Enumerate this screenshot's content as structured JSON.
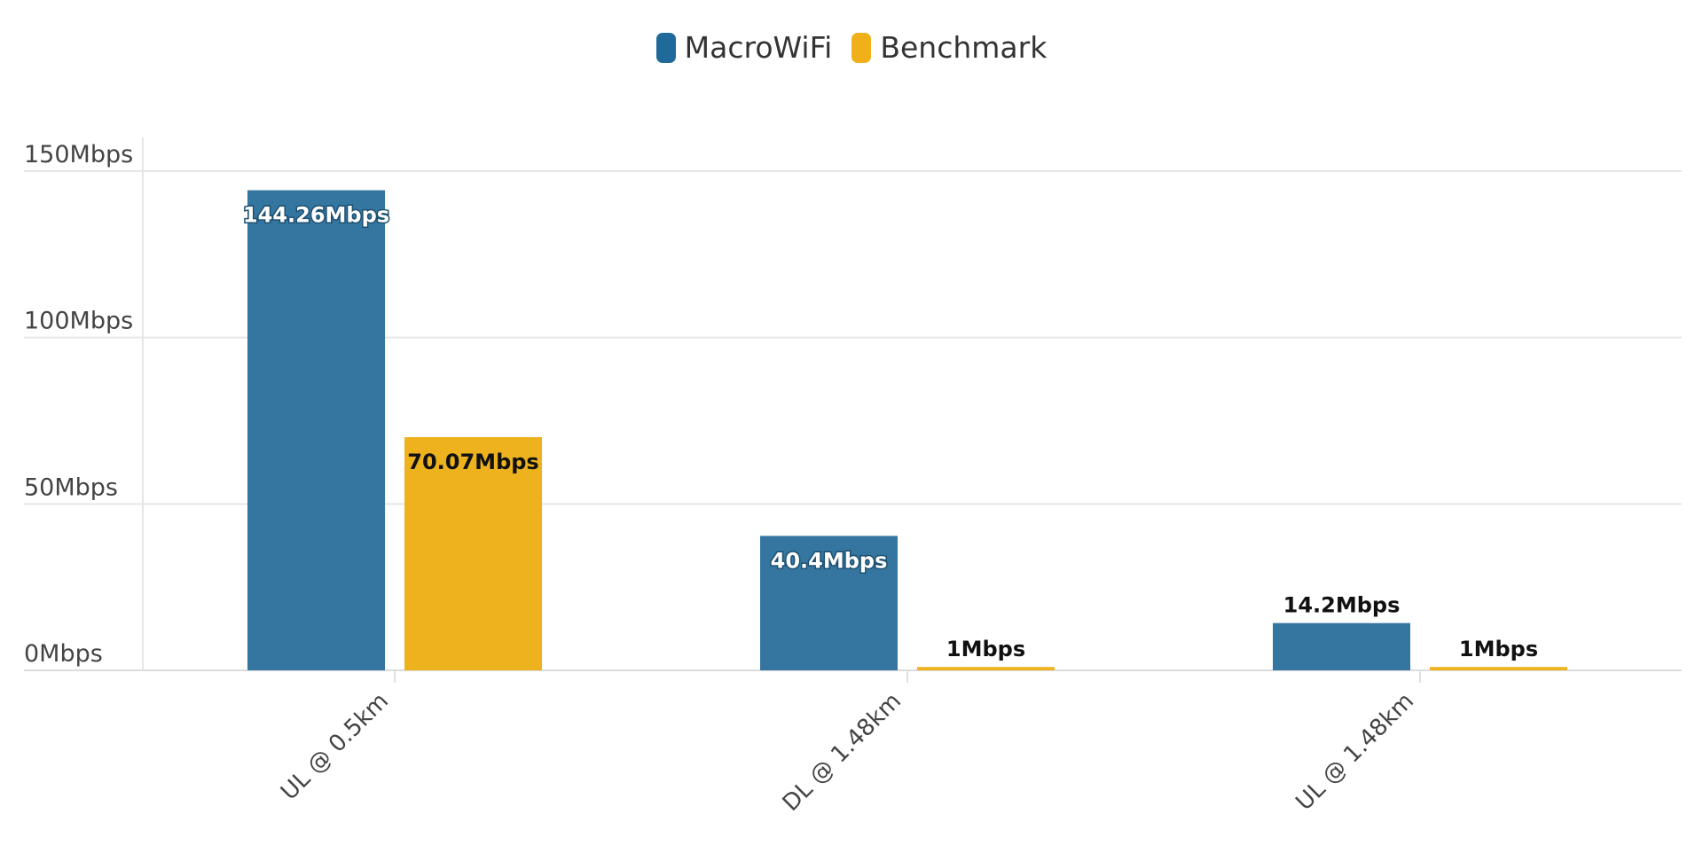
{
  "chart_data": {
    "type": "bar",
    "categories": [
      "UL @ 0.5km",
      "DL @ 1.48km",
      "UL @ 1.48km"
    ],
    "series": [
      {
        "name": "MacroWiFi",
        "color": "#3476a0",
        "values": [
          144.26,
          40.4,
          14.2
        ],
        "labels": [
          "144.26Mbps",
          "40.4Mbps",
          "14.2Mbps"
        ]
      },
      {
        "name": "Benchmark",
        "color": "#edb21e",
        "values": [
          70.07,
          1,
          1
        ],
        "labels": [
          "70.07Mbps",
          "1Mbps",
          "1Mbps"
        ]
      }
    ],
    "yticks": [
      0,
      50,
      100,
      150
    ],
    "ytick_labels": [
      "0Mbps",
      "50Mbps",
      "100Mbps",
      "150Mbps"
    ],
    "ylim": [
      0,
      150
    ],
    "title": "",
    "xlabel": "",
    "ylabel": "",
    "grid": true,
    "legend_position": "top-center"
  }
}
